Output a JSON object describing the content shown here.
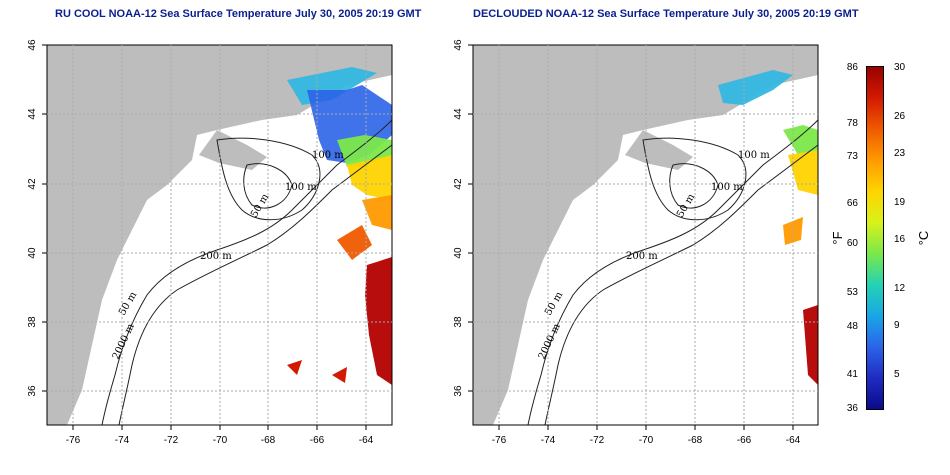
{
  "titles": {
    "left": "RU COOL NOAA-12 Sea Surface Temperature July 30, 2005 20:19 GMT",
    "right": "DECLOUDED NOAA-12 Sea Surface Temperature July 30, 2005 20:19 GMT"
  },
  "axes": {
    "x_ticks": [
      "-76",
      "-74",
      "-72",
      "-70",
      "-68",
      "-66",
      "-64"
    ],
    "y_ticks": [
      "46",
      "44",
      "42",
      "40",
      "38",
      "36"
    ],
    "x_range": [
      -77,
      -63
    ],
    "y_range": [
      35,
      46
    ]
  },
  "contour_labels": [
    "100 m",
    "100 m",
    "50 m",
    "200 m",
    "50 m",
    "2000 m"
  ],
  "colorbar": {
    "fahrenheit_ticks": [
      "86",
      "78",
      "73",
      "66",
      "60",
      "53",
      "48",
      "41",
      "36"
    ],
    "celsius_ticks": [
      "30",
      "26",
      "23",
      "19",
      "16",
      "12",
      "9",
      "5"
    ],
    "fahrenheit_label": "°F",
    "celsius_label": "°C",
    "colors": [
      "#9b0000",
      "#d21a00",
      "#f05a00",
      "#ff9a00",
      "#ffd400",
      "#d8f21a",
      "#7be84a",
      "#23d3b4",
      "#1aa6e6",
      "#2b64e8",
      "#1f2cc2",
      "#0b0a8a"
    ]
  },
  "colors": {
    "land": "#bdbdbd",
    "ocean": "#ffffff",
    "title": "#0a1f8f"
  }
}
